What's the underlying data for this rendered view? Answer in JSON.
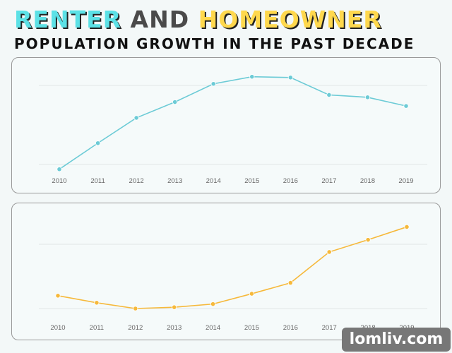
{
  "title": {
    "part1": "RENTER",
    "part2": "AND",
    "part3": "HOMEOWNER",
    "subtitle": "POPULATION GROWTH IN THE PAST DECADE"
  },
  "colors": {
    "renter": "#6ccbd6",
    "homeowner": "#f6b93b",
    "title_renter": "#5ce1e6",
    "title_homeowner": "#ffd84d"
  },
  "watermark": "lomliv.com",
  "chart_data": [
    {
      "type": "line",
      "categories": [
        "2010",
        "2011",
        "2012",
        "2013",
        "2014",
        "2015",
        "2016",
        "2017",
        "2018",
        "2019"
      ],
      "values": [
        -0.06,
        0.27,
        0.59,
        0.79,
        1.02,
        1.11,
        1.1,
        0.88,
        0.85,
        0.74
      ],
      "ylim": [
        -0.1,
        1.2
      ],
      "gridlines": [
        0,
        1
      ],
      "grid": true,
      "color": "#6ccbd6"
    },
    {
      "type": "line",
      "categories": [
        "2010",
        "2011",
        "2012",
        "2013",
        "2014",
        "2015",
        "2016",
        "2017",
        "2018",
        "2019"
      ],
      "values": [
        0.2,
        0.09,
        0.0,
        0.02,
        0.07,
        0.23,
        0.4,
        0.88,
        1.07,
        1.27
      ],
      "ylim": [
        -0.1,
        1.35
      ],
      "gridlines": [
        0,
        1
      ],
      "grid": true,
      "color": "#f6b93b"
    }
  ]
}
